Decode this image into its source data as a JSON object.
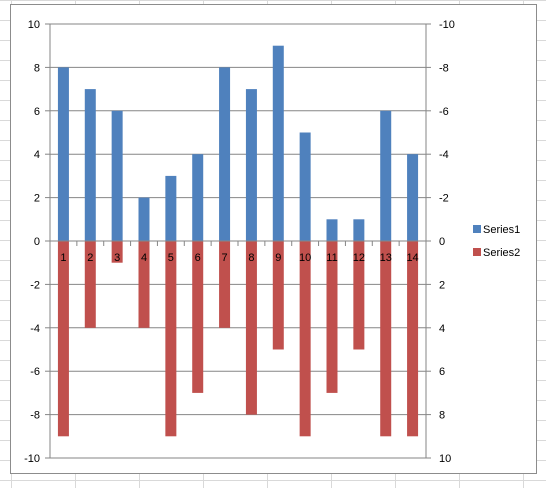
{
  "chart_data": {
    "type": "bar",
    "categories": [
      "1",
      "2",
      "3",
      "4",
      "5",
      "6",
      "7",
      "8",
      "9",
      "10",
      "11",
      "12",
      "13",
      "14"
    ],
    "series": [
      {
        "name": "Series1",
        "color": "#4f81bd",
        "values": [
          8,
          7,
          6,
          2,
          3,
          4,
          8,
          7,
          9,
          5,
          1,
          1,
          6,
          4
        ]
      },
      {
        "name": "Series2",
        "color": "#c0504d",
        "values": [
          -9,
          -4,
          -1,
          -4,
          -9,
          -7,
          -4,
          -8,
          -5,
          -9,
          -7,
          -5,
          -9,
          -9
        ]
      }
    ],
    "ylim": [
      -10,
      10
    ],
    "yticks_left": [
      "10",
      "8",
      "6",
      "4",
      "2",
      "0",
      "-2",
      "-4",
      "-6",
      "-8",
      "-10"
    ],
    "yticks_right": [
      "-10",
      "-8",
      "-6",
      "-4",
      "-2",
      "0",
      "2",
      "4",
      "6",
      "8",
      "10"
    ],
    "grid": true,
    "legend_position": "right",
    "title": "",
    "xlabel": "",
    "ylabel": ""
  }
}
